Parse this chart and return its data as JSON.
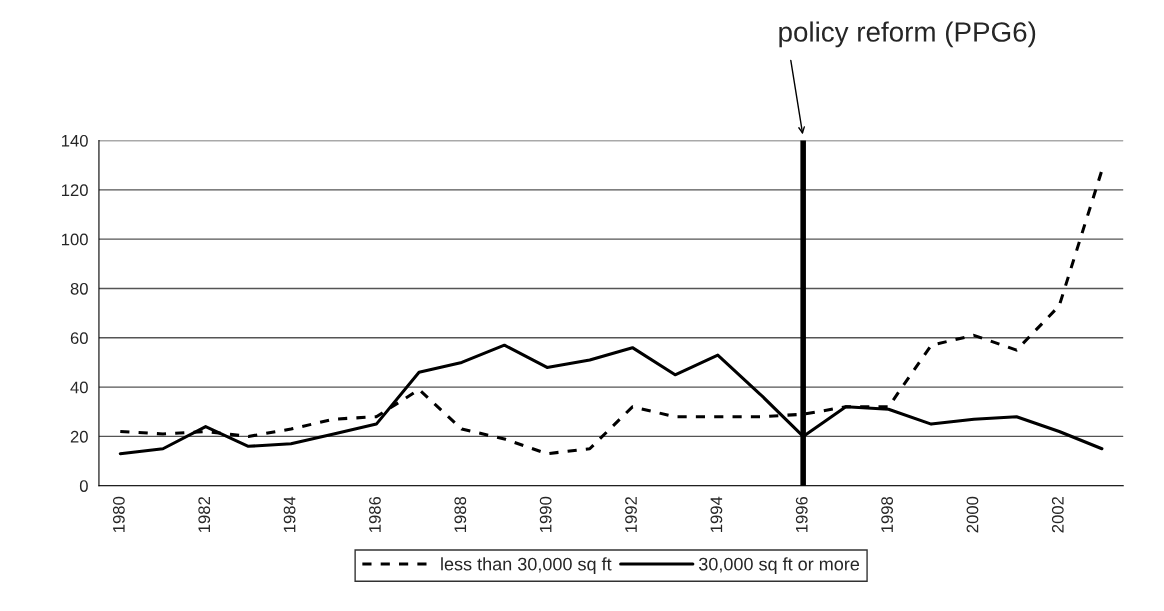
{
  "chart_data": {
    "type": "line",
    "categories": [
      "1980",
      null,
      "1982",
      null,
      "1984",
      null,
      "1986",
      null,
      "1988",
      null,
      "1990",
      null,
      "1992",
      null,
      "1994",
      null,
      "1996",
      null,
      "1998",
      null,
      "2000",
      null,
      "2002",
      null
    ],
    "series": [
      {
        "name": "less than 30,000 sq ft",
        "color": "#000000",
        "line_style": "dashed",
        "values": [
          22,
          21,
          22,
          20,
          23,
          27,
          28,
          39,
          23,
          19,
          13,
          15,
          32,
          28,
          28,
          28,
          29,
          32,
          32,
          57,
          61,
          55,
          73,
          128
        ]
      },
      {
        "name": "30,000 sq ft or more",
        "color": "#000000",
        "line_style": "solid",
        "values": [
          13,
          15,
          24,
          16,
          17,
          21,
          25,
          46,
          50,
          57,
          48,
          51,
          56,
          45,
          53,
          37,
          20,
          32,
          31,
          25,
          27,
          28,
          22,
          15
        ]
      }
    ],
    "ylim": [
      0,
      140
    ],
    "yticks": [
      0,
      20,
      40,
      60,
      80,
      100,
      120,
      140
    ],
    "ref_lines": [
      {
        "axis": "x",
        "value": "1996",
        "label": "policy reform (PPG6)",
        "color": "#000000"
      }
    ],
    "grid": "y",
    "legend": "bottom",
    "marker": "none"
  }
}
